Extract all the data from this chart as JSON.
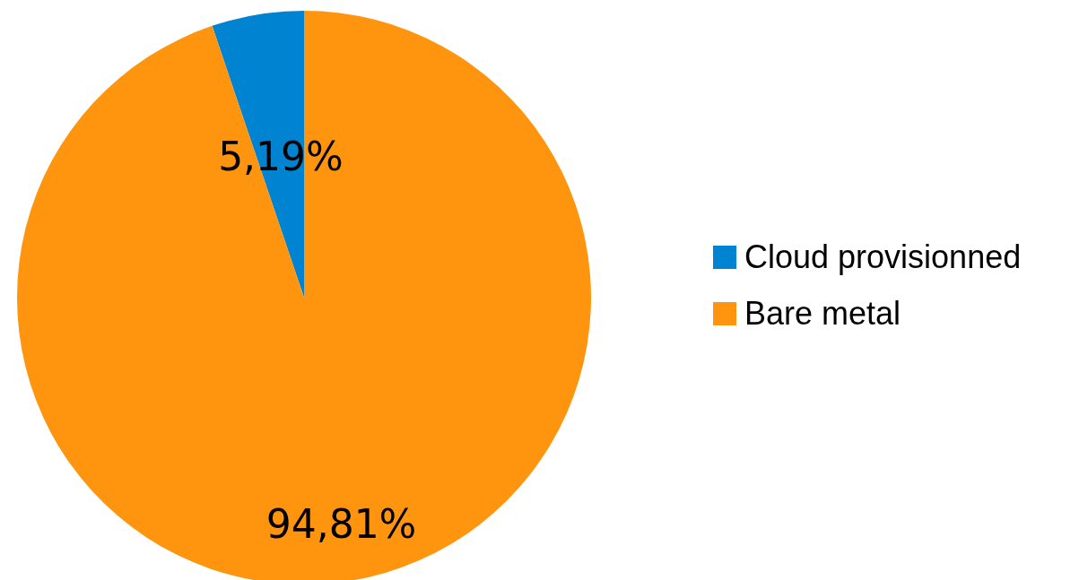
{
  "chart_data": {
    "type": "pie",
    "categories": [
      "Cloud provisionned",
      "Bare metal"
    ],
    "values": [
      5.19,
      94.81
    ],
    "colors": [
      "#0084d1",
      "#ff950e"
    ],
    "value_labels": [
      "5,19%",
      "94,81%"
    ],
    "legend": "right"
  }
}
